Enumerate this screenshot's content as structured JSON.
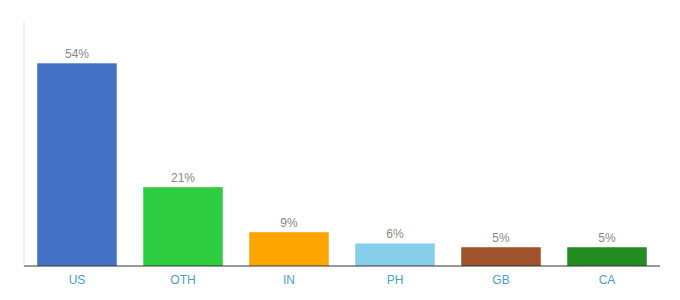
{
  "chart_data": {
    "type": "bar",
    "categories": [
      "US",
      "OTH",
      "IN",
      "PH",
      "GB",
      "CA"
    ],
    "values": [
      54,
      21,
      9,
      6,
      5,
      5
    ],
    "value_labels": [
      "54%",
      "21%",
      "9%",
      "6%",
      "5%",
      "5%"
    ],
    "colors": [
      "#4472C4",
      "#2ECC40",
      "#FFA500",
      "#87CEEB",
      "#A0522D",
      "#228B22"
    ],
    "ylim": [
      0,
      65
    ],
    "data_labels": true,
    "tick_labels": "x"
  }
}
